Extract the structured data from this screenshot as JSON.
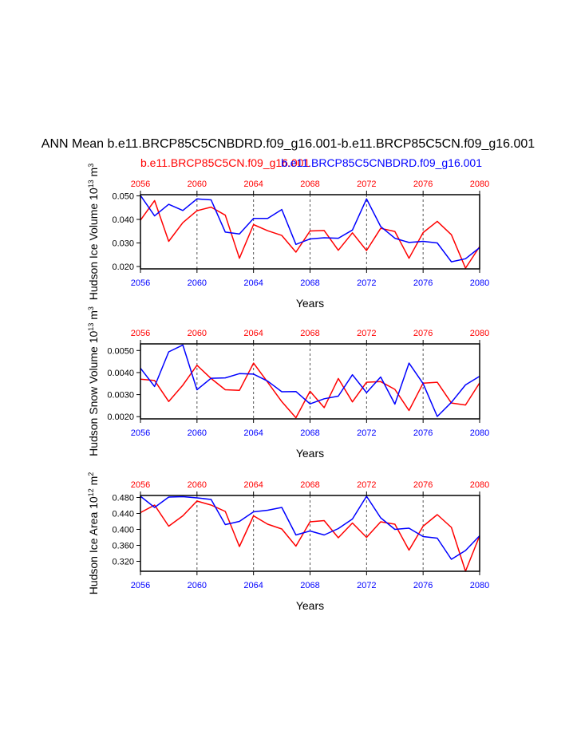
{
  "title": "ANN Mean b.e11.BRCP85C5CNBDRD.f09_g16.001-b.e11.BRCP85C5CN.f09_g16.001",
  "subtitle_left": "b.e11.BRCP85C5CN.f09_g16.001",
  "subtitle_right": "b.e11.BRCP85C5CNBDRD.f09_g16.001",
  "colors": {
    "red": "#ff0000",
    "blue": "#0000ff",
    "axis": "#000000",
    "grid": "#555555"
  },
  "chart_data": [
    {
      "type": "line",
      "ylabel": "Hudson Ice Volume 10",
      "ylabel_exp": "13",
      "ylabel_unit": " m",
      "ylabel_unit_exp": "3",
      "xlabel": "Years",
      "xlim": [
        2056,
        2080
      ],
      "ylim": [
        0.019,
        0.0505
      ],
      "yticks": [
        0.02,
        0.03,
        0.04,
        0.05
      ],
      "yticklabels": [
        "0.020",
        "0.030",
        "0.040",
        "0.050"
      ],
      "xticks": [
        2056,
        2060,
        2064,
        2068,
        2072,
        2076,
        2080
      ],
      "xticklabels": [
        "2056",
        "2060",
        "2064",
        "2068",
        "2072",
        "2076",
        "2080"
      ],
      "x": [
        2056,
        2057,
        2058,
        2059,
        2060,
        2061,
        2062,
        2063,
        2064,
        2065,
        2066,
        2067,
        2068,
        2069,
        2070,
        2071,
        2072,
        2073,
        2074,
        2075,
        2076,
        2077,
        2078,
        2079,
        2080
      ],
      "series": [
        {
          "name": "b.e11.BRCP85C5CN.f09_g16.001",
          "color": "red",
          "values": [
            0.0397,
            0.048,
            0.0307,
            0.0386,
            0.0437,
            0.0452,
            0.0418,
            0.0235,
            0.0378,
            0.0352,
            0.0332,
            0.0261,
            0.0351,
            0.0353,
            0.0269,
            0.0343,
            0.0268,
            0.0362,
            0.0349,
            0.0235,
            0.0344,
            0.0392,
            0.0335,
            0.0193,
            0.0285
          ]
        },
        {
          "name": "b.e11.BRCP85C5CNBDRD.f09_g16.001",
          "color": "blue",
          "values": [
            0.0502,
            0.0415,
            0.0464,
            0.0438,
            0.0487,
            0.0483,
            0.0346,
            0.0338,
            0.0404,
            0.0404,
            0.0442,
            0.0294,
            0.0317,
            0.0322,
            0.032,
            0.0355,
            0.0487,
            0.037,
            0.032,
            0.0302,
            0.0307,
            0.03,
            0.022,
            0.0233,
            0.028
          ]
        }
      ]
    },
    {
      "type": "line",
      "ylabel": "Hudson Snow Volume 10",
      "ylabel_exp": "13",
      "ylabel_unit": " m",
      "ylabel_unit_exp": "3",
      "xlabel": "Years",
      "xlim": [
        2056,
        2080
      ],
      "ylim": [
        0.0019,
        0.0053
      ],
      "yticks": [
        0.002,
        0.003,
        0.004,
        0.005
      ],
      "yticklabels": [
        "0.0020",
        "0.0030",
        "0.0040",
        "0.0050"
      ],
      "xticks": [
        2056,
        2060,
        2064,
        2068,
        2072,
        2076,
        2080
      ],
      "xticklabels": [
        "2056",
        "2060",
        "2064",
        "2068",
        "2072",
        "2076",
        "2080"
      ],
      "x": [
        2056,
        2057,
        2058,
        2059,
        2060,
        2061,
        2062,
        2063,
        2064,
        2065,
        2066,
        2067,
        2068,
        2069,
        2070,
        2071,
        2072,
        2073,
        2074,
        2075,
        2076,
        2077,
        2078,
        2079,
        2080
      ],
      "series": [
        {
          "name": "b.e11.BRCP85C5CN.f09_g16.001",
          "color": "red",
          "values": [
            0.0037,
            0.00364,
            0.00269,
            0.00343,
            0.00433,
            0.00373,
            0.00322,
            0.00319,
            0.00443,
            0.00356,
            0.00268,
            0.00195,
            0.00315,
            0.00241,
            0.00373,
            0.00267,
            0.00356,
            0.00359,
            0.00324,
            0.00228,
            0.00352,
            0.00356,
            0.00262,
            0.00253,
            0.00353
          ]
        },
        {
          "name": "b.e11.BRCP85C5CNBDRD.f09_g16.001",
          "color": "blue",
          "values": [
            0.0042,
            0.00337,
            0.00494,
            0.00525,
            0.00322,
            0.00374,
            0.00376,
            0.00395,
            0.00393,
            0.00361,
            0.00313,
            0.00314,
            0.00258,
            0.00281,
            0.00293,
            0.0039,
            0.00309,
            0.0038,
            0.00257,
            0.00443,
            0.0035,
            0.00201,
            0.00265,
            0.00344,
            0.00383
          ]
        }
      ]
    },
    {
      "type": "line",
      "ylabel": "Hudson Ice Area 10",
      "ylabel_exp": "12",
      "ylabel_unit": " m",
      "ylabel_unit_exp": "2",
      "xlabel": "Years",
      "xlim": [
        2056,
        2080
      ],
      "ylim": [
        0.295,
        0.485
      ],
      "yticks": [
        0.32,
        0.36,
        0.4,
        0.44,
        0.48
      ],
      "yticklabels": [
        "0.320",
        "0.360",
        "0.400",
        "0.440",
        "0.480"
      ],
      "xticks": [
        2056,
        2060,
        2064,
        2068,
        2072,
        2076,
        2080
      ],
      "xticklabels": [
        "2056",
        "2060",
        "2064",
        "2068",
        "2072",
        "2076",
        "2080"
      ],
      "x": [
        2056,
        2057,
        2058,
        2059,
        2060,
        2061,
        2062,
        2063,
        2064,
        2065,
        2066,
        2067,
        2068,
        2069,
        2070,
        2071,
        2072,
        2073,
        2074,
        2075,
        2076,
        2077,
        2078,
        2079,
        2080
      ],
      "series": [
        {
          "name": "b.e11.BRCP85C5CN.f09_g16.001",
          "color": "red",
          "values": [
            0.442,
            0.461,
            0.408,
            0.434,
            0.471,
            0.461,
            0.445,
            0.357,
            0.434,
            0.413,
            0.401,
            0.358,
            0.419,
            0.422,
            0.379,
            0.416,
            0.38,
            0.419,
            0.413,
            0.348,
            0.408,
            0.437,
            0.405,
            0.295,
            0.384
          ]
        },
        {
          "name": "b.e11.BRCP85C5CNBDRD.f09_g16.001",
          "color": "blue",
          "values": [
            0.483,
            0.455,
            0.481,
            0.482,
            0.479,
            0.475,
            0.412,
            0.42,
            0.444,
            0.448,
            0.455,
            0.386,
            0.396,
            0.386,
            0.402,
            0.426,
            0.483,
            0.429,
            0.4,
            0.403,
            0.382,
            0.378,
            0.325,
            0.347,
            0.384
          ]
        }
      ]
    }
  ]
}
